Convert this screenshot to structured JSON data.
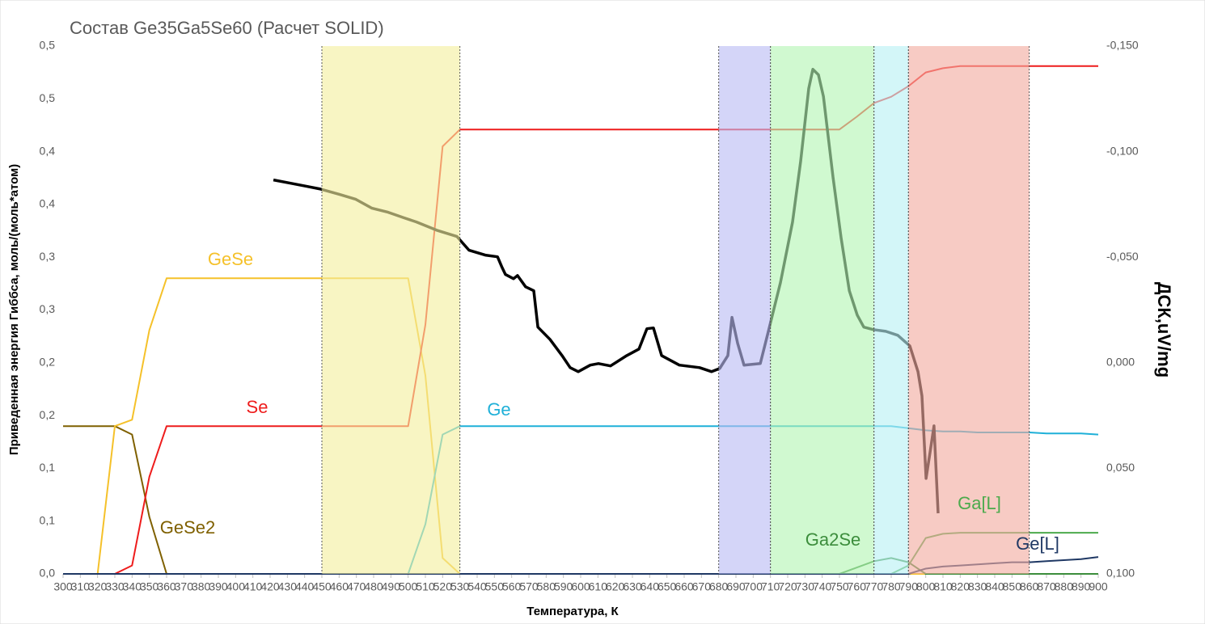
{
  "chart_data": {
    "type": "line",
    "title": "Состав Ge35Ga5Se60 (Расчет SOLID)",
    "x_label": "Температура, К",
    "y_label": "Приведенная энергия Гиббса, моль/(моль*атом)",
    "y2_label": "ДСК,uV/mg",
    "xlim": [
      300,
      900
    ],
    "xticks": [
      300,
      310,
      320,
      330,
      340,
      350,
      360,
      370,
      380,
      390,
      400,
      410,
      420,
      430,
      440,
      450,
      460,
      470,
      480,
      490,
      500,
      510,
      520,
      530,
      540,
      550,
      560,
      570,
      580,
      590,
      600,
      610,
      620,
      630,
      640,
      650,
      660,
      670,
      680,
      690,
      700,
      710,
      720,
      730,
      740,
      750,
      760,
      770,
      780,
      790,
      800,
      810,
      820,
      830,
      840,
      850,
      860,
      870,
      880,
      890,
      900
    ],
    "ylim": [
      0,
      0.5
    ],
    "yticks": [
      {
        "value": 0,
        "label": "0,0"
      },
      {
        "value": 0.05,
        "label": "0,1"
      },
      {
        "value": 0.1,
        "label": "0,1"
      },
      {
        "value": 0.15,
        "label": "0,2"
      },
      {
        "value": 0.2,
        "label": "0,2"
      },
      {
        "value": 0.25,
        "label": "0,3"
      },
      {
        "value": 0.3,
        "label": "0,3"
      },
      {
        "value": 0.35,
        "label": "0,4"
      },
      {
        "value": 0.4,
        "label": "0,4"
      },
      {
        "value": 0.45,
        "label": "0,5"
      },
      {
        "value": 0.5,
        "label": "0,5"
      }
    ],
    "y2lim": [
      0.1,
      -0.15
    ],
    "y2ticks": [
      {
        "value": 0.1,
        "label": "0,100"
      },
      {
        "value": 0.05,
        "label": "0,050"
      },
      {
        "value": 0,
        "label": "0,000"
      },
      {
        "value": -0.05,
        "label": "-0,050"
      },
      {
        "value": -0.1,
        "label": "-0,100"
      },
      {
        "value": -0.15,
        "label": "-0,150"
      }
    ],
    "x": [
      300,
      310,
      320,
      330,
      340,
      350,
      360,
      370,
      380,
      390,
      400,
      410,
      420,
      430,
      440,
      450,
      460,
      470,
      480,
      490,
      500,
      510,
      520,
      530,
      540,
      550,
      560,
      570,
      580,
      590,
      600,
      610,
      620,
      630,
      640,
      650,
      660,
      670,
      680,
      690,
      700,
      710,
      720,
      730,
      740,
      750,
      760,
      770,
      780,
      790,
      800,
      810,
      820,
      830,
      840,
      850,
      860,
      870,
      880,
      890,
      900
    ],
    "regions": [
      {
        "from": 450,
        "to": 530,
        "color": "#f3ef9e"
      },
      {
        "from": 680,
        "to": 710,
        "color": "#b9bcf3"
      },
      {
        "from": 710,
        "to": 770,
        "color": "#b3f5b3"
      },
      {
        "from": 770,
        "to": 790,
        "color": "#b8f0f3"
      },
      {
        "from": 790,
        "to": 860,
        "color": "#f2ab9f"
      }
    ],
    "series": [
      {
        "name": "GeSe2",
        "color": "#7f6000",
        "values": [
          0.14,
          0.14,
          0.14,
          0.14,
          0.132,
          0.054,
          0,
          0,
          0,
          0,
          0,
          0,
          0,
          0,
          0,
          0,
          0,
          0,
          0,
          0,
          0,
          0,
          0,
          0,
          0,
          0,
          0,
          0,
          0,
          0,
          0,
          0,
          0,
          0,
          0,
          0,
          0,
          0,
          0,
          0,
          0,
          0,
          0,
          0,
          0,
          0,
          0,
          0,
          0,
          0,
          0,
          0,
          0,
          0,
          0,
          0,
          0,
          0,
          0,
          0,
          0
        ]
      },
      {
        "name": "GeSe",
        "color": "#f5c12a",
        "values": [
          0,
          0,
          0,
          0.14,
          0.146,
          0.231,
          0.28,
          0.28,
          0.28,
          0.28,
          0.28,
          0.28,
          0.28,
          0.28,
          0.28,
          0.28,
          0.28,
          0.28,
          0.28,
          0.28,
          0.28,
          0.188,
          0.015,
          0,
          0,
          0,
          0,
          0,
          0,
          0,
          0,
          0,
          0,
          0,
          0,
          0,
          0,
          0,
          0,
          0,
          0,
          0,
          0,
          0,
          0,
          0,
          0,
          0,
          0,
          0,
          0,
          0,
          0,
          0,
          0,
          0,
          0,
          0,
          0,
          0,
          0
        ]
      },
      {
        "name": "Se",
        "color": "#ee1c1c",
        "values": [
          0,
          0,
          0,
          0,
          0.008,
          0.092,
          0.14,
          0.14,
          0.14,
          0.14,
          0.14,
          0.14,
          0.14,
          0.14,
          0.14,
          0.14,
          0.14,
          0.14,
          0.14,
          0.14,
          0.14,
          0.236,
          0.405,
          0.421,
          0.421,
          0.421,
          0.421,
          0.421,
          0.421,
          0.421,
          0.421,
          0.421,
          0.421,
          0.421,
          0.421,
          0.421,
          0.421,
          0.421,
          0.421,
          0.421,
          0.421,
          0.421,
          0.421,
          0.421,
          0.421,
          0.421,
          0.433,
          0.446,
          0.452,
          0.462,
          0.475,
          0.479,
          0.481,
          0.481,
          0.481,
          0.481,
          0.481,
          0.481,
          0.481,
          0.481,
          0.481
        ]
      },
      {
        "name": "Ge",
        "color": "#1fb0d8",
        "values": [
          0,
          0,
          0,
          0,
          0,
          0,
          0,
          0,
          0,
          0,
          0,
          0,
          0,
          0,
          0,
          0,
          0,
          0,
          0,
          0,
          0,
          0.047,
          0.132,
          0.14,
          0.14,
          0.14,
          0.14,
          0.14,
          0.14,
          0.14,
          0.14,
          0.14,
          0.14,
          0.14,
          0.14,
          0.14,
          0.14,
          0.14,
          0.14,
          0.14,
          0.14,
          0.14,
          0.14,
          0.14,
          0.14,
          0.14,
          0.14,
          0.14,
          0.14,
          0.138,
          0.136,
          0.135,
          0.135,
          0.134,
          0.134,
          0.134,
          0.134,
          0.133,
          0.133,
          0.133,
          0.132
        ]
      },
      {
        "name": "Ga2Se",
        "color": "#3c8d3c",
        "values": [
          0,
          0,
          0,
          0,
          0,
          0,
          0,
          0,
          0,
          0,
          0,
          0,
          0,
          0,
          0,
          0,
          0,
          0,
          0,
          0,
          0,
          0,
          0,
          0,
          0,
          0,
          0,
          0,
          0,
          0,
          0,
          0,
          0,
          0,
          0,
          0,
          0,
          0,
          0,
          0,
          0,
          0,
          0,
          0,
          0,
          0,
          0.006,
          0.012,
          0.015,
          0.011,
          0,
          0,
          0,
          0,
          0,
          0,
          0,
          0,
          0,
          0,
          0
        ]
      },
      {
        "name": "Ga[L]",
        "color": "#4caa4c",
        "values": [
          0,
          0,
          0,
          0,
          0,
          0,
          0,
          0,
          0,
          0,
          0,
          0,
          0,
          0,
          0,
          0,
          0,
          0,
          0,
          0,
          0,
          0,
          0,
          0,
          0,
          0,
          0,
          0,
          0,
          0,
          0,
          0,
          0,
          0,
          0,
          0,
          0,
          0,
          0,
          0,
          0,
          0,
          0,
          0,
          0,
          0,
          0,
          0,
          0,
          0.008,
          0.034,
          0.038,
          0.039,
          0.039,
          0.039,
          0.039,
          0.039,
          0.039,
          0.039,
          0.039,
          0.039
        ]
      },
      {
        "name": "Ge[L]",
        "color": "#1f3864",
        "values": [
          0,
          0,
          0,
          0,
          0,
          0,
          0,
          0,
          0,
          0,
          0,
          0,
          0,
          0,
          0,
          0,
          0,
          0,
          0,
          0,
          0,
          0,
          0,
          0,
          0,
          0,
          0,
          0,
          0,
          0,
          0,
          0,
          0,
          0,
          0,
          0,
          0,
          0,
          0,
          0,
          0,
          0,
          0,
          0,
          0,
          0,
          0,
          0,
          0,
          0,
          0.005,
          0.007,
          0.008,
          0.009,
          0.01,
          0.011,
          0.011,
          0.012,
          0.013,
          0.014,
          0.016
        ]
      },
      {
        "color": "#000000",
        "axis": "y2",
        "x": [
          421.9,
          432.2,
          441.6,
          448.6,
          460.3,
          469.7,
          479,
          488.4,
          497.8,
          504.8,
          516.5,
          528.3,
          535.3,
          544.7,
          551.8,
          554.2,
          556.4,
          561.1,
          563.4,
          568.1,
          572.8,
          575.2,
          582.2,
          589.2,
          593.9,
          598.6,
          605.6,
          610.3,
          617.3,
          626.7,
          633.8,
          638.4,
          642.2,
          646.9,
          657.2,
          668.9,
          675.9,
          680.6,
          685.3,
          687.7,
          691,
          694.7,
          704.1,
          708.8,
          715.8,
          722.8,
          727.5,
          732.2,
          734.6,
          737.8,
          740.7,
          746.3,
          751,
          755.7,
          760.3,
          764.1,
          769.7,
          776.8,
          783.8,
          790.8,
          795.5,
          797.8,
          800.2,
          802.5,
          804.8,
          807.2
        ],
        "values": [
          -0.0866,
          -0.085,
          -0.0835,
          -0.0824,
          -0.0797,
          -0.0774,
          -0.0732,
          -0.0713,
          -0.0686,
          -0.0667,
          -0.0628,
          -0.0598,
          -0.0533,
          -0.051,
          -0.0502,
          -0.0456,
          -0.0418,
          -0.0398,
          -0.0413,
          -0.036,
          -0.0341,
          -0.0169,
          -0.0111,
          -0.0034,
          0.0023,
          0.0042,
          0.0011,
          0.0004,
          0.0015,
          -0.0034,
          -0.0065,
          -0.0161,
          -0.0165,
          -0.0034,
          0.0011,
          0.0023,
          0.0042,
          0.0027,
          -0.0034,
          -0.0215,
          -0.0092,
          0.0011,
          0.0004,
          -0.0149,
          -0.0379,
          -0.0667,
          -0.0954,
          -0.1299,
          -0.139,
          -0.1364,
          -0.1261,
          -0.0877,
          -0.059,
          -0.0341,
          -0.0226,
          -0.0169,
          -0.0157,
          -0.0149,
          -0.013,
          -0.008,
          0.0042,
          0.0157,
          0.0548,
          0.0425,
          0.0299,
          0.0713
        ]
      }
    ]
  }
}
